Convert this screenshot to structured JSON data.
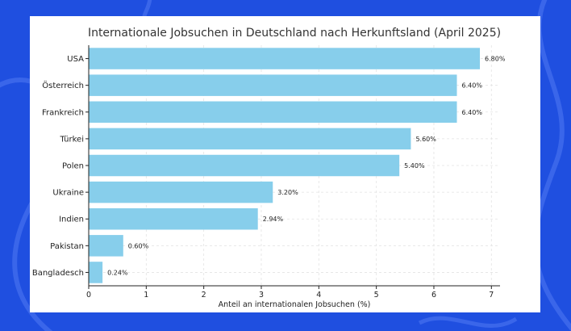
{
  "chart_data": {
    "type": "bar",
    "orientation": "horizontal",
    "title": "Internationale Jobsuchen in Deutschland nach Herkunftsland (April 2025)",
    "xlabel": "Anteil an internationalen Jobsuchen (%)",
    "ylabel": "",
    "categories": [
      "USA",
      "Österreich",
      "Frankreich",
      "Türkei",
      "Polen",
      "Ukraine",
      "Indien",
      "Pakistan",
      "Bangladesch"
    ],
    "values": [
      6.8,
      6.4,
      6.4,
      5.6,
      5.4,
      3.2,
      2.94,
      0.6,
      0.24
    ],
    "value_labels": [
      "6.80%",
      "6.40%",
      "6.40%",
      "5.60%",
      "5.40%",
      "3.20%",
      "2.94%",
      "0.60%",
      "0.24%"
    ],
    "xlim": [
      0,
      7.15
    ],
    "xticks": [
      0,
      1,
      2,
      3,
      4,
      5,
      6,
      7
    ],
    "xtick_labels": [
      "0",
      "1",
      "2",
      "3",
      "4",
      "5",
      "6",
      "7"
    ],
    "grid": true,
    "bar_color": "#87ceeb"
  },
  "colors": {
    "page_background": "#1f4fe0",
    "card_background": "#ffffff",
    "bar": "#87ceeb"
  }
}
